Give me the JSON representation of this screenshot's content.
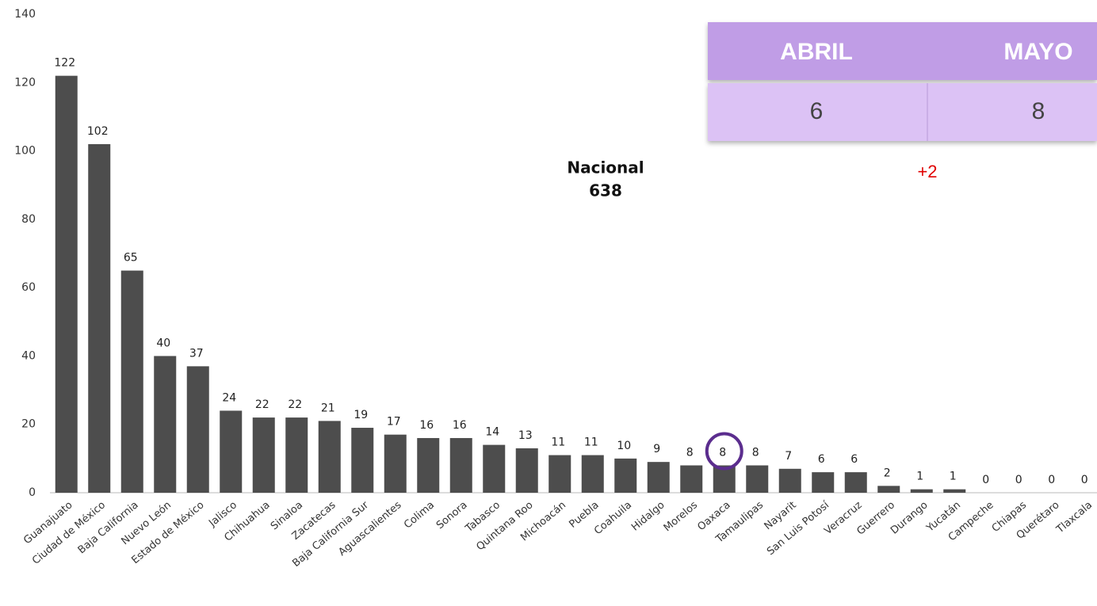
{
  "chart_data": {
    "type": "bar",
    "categories": [
      "Guanajuato",
      "Ciudad de México",
      "Baja California",
      "Nuevo León",
      "Estado de México",
      "Jalisco",
      "Chihuahua",
      "Sinaloa",
      "Zacatecas",
      "Baja California Sur",
      "Aguascalientes",
      "Colima",
      "Sonora",
      "Tabasco",
      "Quintana Roo",
      "Michoacán",
      "Puebla",
      "Coahuila",
      "Hidalgo",
      "Morelos",
      "Oaxaca",
      "Tamaulipas",
      "Nayarit",
      "San Luis Potosí",
      "Veracruz",
      "Guerrero",
      "Durango",
      "Yucatán",
      "Campeche",
      "Chiapas",
      "Querétaro",
      "Tlaxcala"
    ],
    "values": [
      122,
      102,
      65,
      40,
      37,
      24,
      22,
      22,
      21,
      19,
      17,
      16,
      16,
      14,
      13,
      11,
      11,
      10,
      9,
      8,
      8,
      8,
      7,
      6,
      6,
      2,
      1,
      1,
      0,
      0,
      0,
      0
    ],
    "color": "#4d4d4d",
    "ylim": [
      0,
      140
    ],
    "yticks": [
      0,
      20,
      40,
      60,
      80,
      100,
      120,
      140
    ],
    "grid": false,
    "annotation": {
      "label": "Nacional",
      "value": 638
    },
    "table": {
      "headers": [
        "ABRIL",
        "MAYO"
      ],
      "values": [
        6,
        8
      ],
      "change": "+2"
    }
  }
}
